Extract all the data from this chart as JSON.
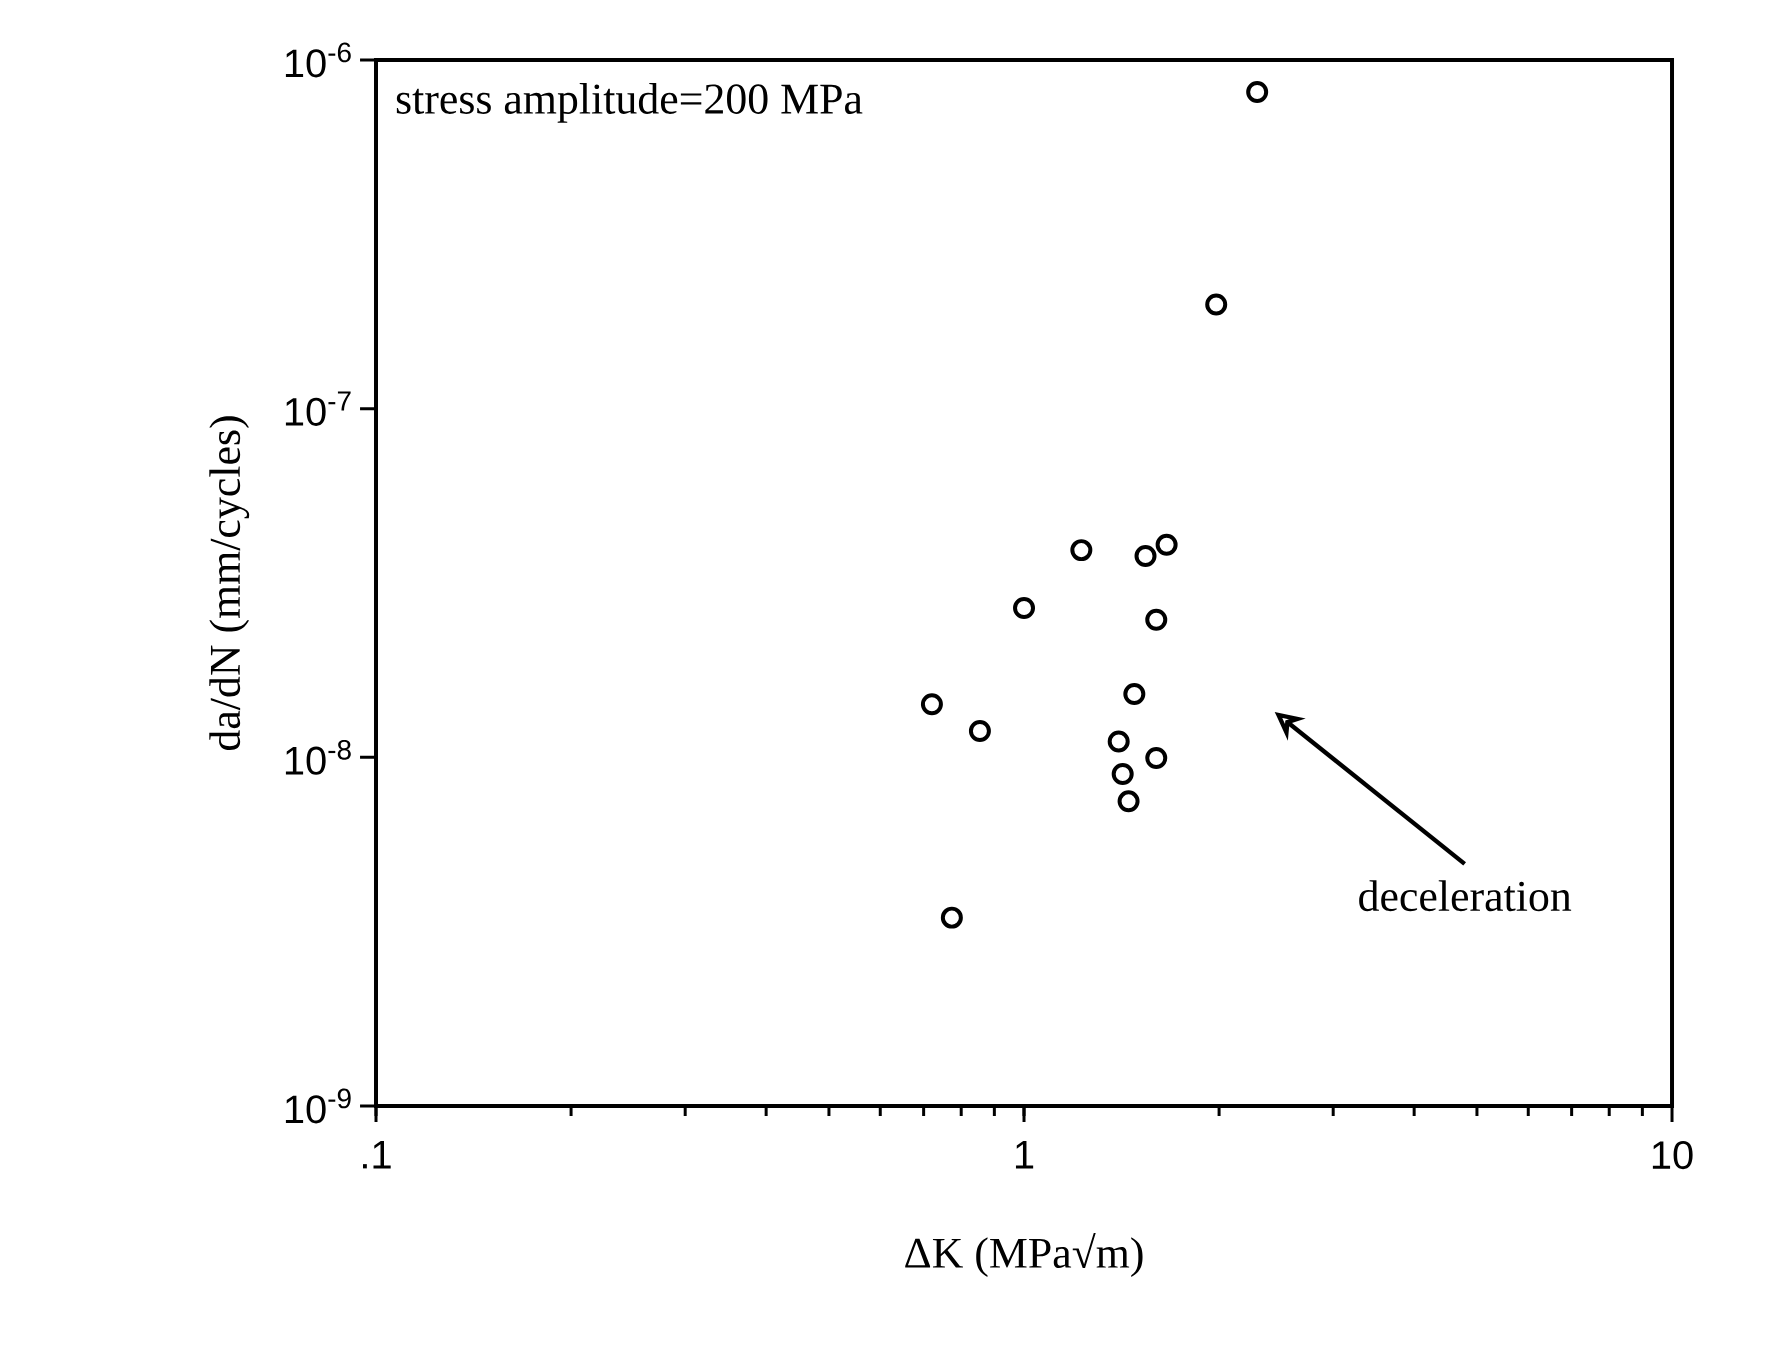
{
  "chart_data": {
    "type": "scatter",
    "xlabel": "ΔK (MPa√m)",
    "ylabel": "da/dN (mm/cycles)",
    "x": [
      2.29,
      1.98,
      1.226,
      1.54,
      1.66,
      1.0,
      1.6,
      0.721,
      0.855,
      1.48,
      1.4,
      1.6,
      1.42,
      1.45,
      0.774
    ],
    "values": [
      8.1e-07,
      1.99e-07,
      3.93e-08,
      3.78e-08,
      4.07e-08,
      2.68e-08,
      2.48e-08,
      1.42e-08,
      1.19e-08,
      1.52e-08,
      1.11e-08,
      9.96e-09,
      8.96e-09,
      7.48e-09,
      3.47e-09
    ],
    "color": "#000000",
    "marker": "circle",
    "log": "xy",
    "grid": false,
    "xlim": [
      0.1,
      10
    ],
    "ylim": [
      1e-09,
      1e-06
    ],
    "xticks": [
      {
        "value": 0.1,
        "label": ".1"
      },
      1,
      10
    ],
    "yticks": [
      {
        "value": 1e-09,
        "label": "10$^{-9}$"
      },
      {
        "value": 1e-08,
        "label": "10$^{-8}$"
      },
      {
        "value": 1e-07,
        "label": "10$^{-7}$"
      },
      {
        "value": 1e-06,
        "label": "10$^{-6}$"
      }
    ],
    "annotations": [
      "stress amplitude=200 MPa",
      "deceleration"
    ]
  }
}
